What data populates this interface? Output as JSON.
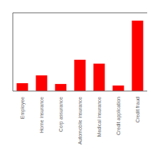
{
  "chart_data": {
    "type": "bar",
    "categories": [
      "Employee",
      "Home insurance",
      "Corp assurance",
      "Automobile insurance",
      "Medical insurance",
      "Credit application",
      "Credit fraud"
    ],
    "values": [
      1.0,
      2.0,
      0.9,
      4.0,
      3.5,
      0.7,
      9.0
    ],
    "color": "#ff0000",
    "ylim": [
      0,
      10
    ],
    "grid": false,
    "tick_labels": "x"
  }
}
